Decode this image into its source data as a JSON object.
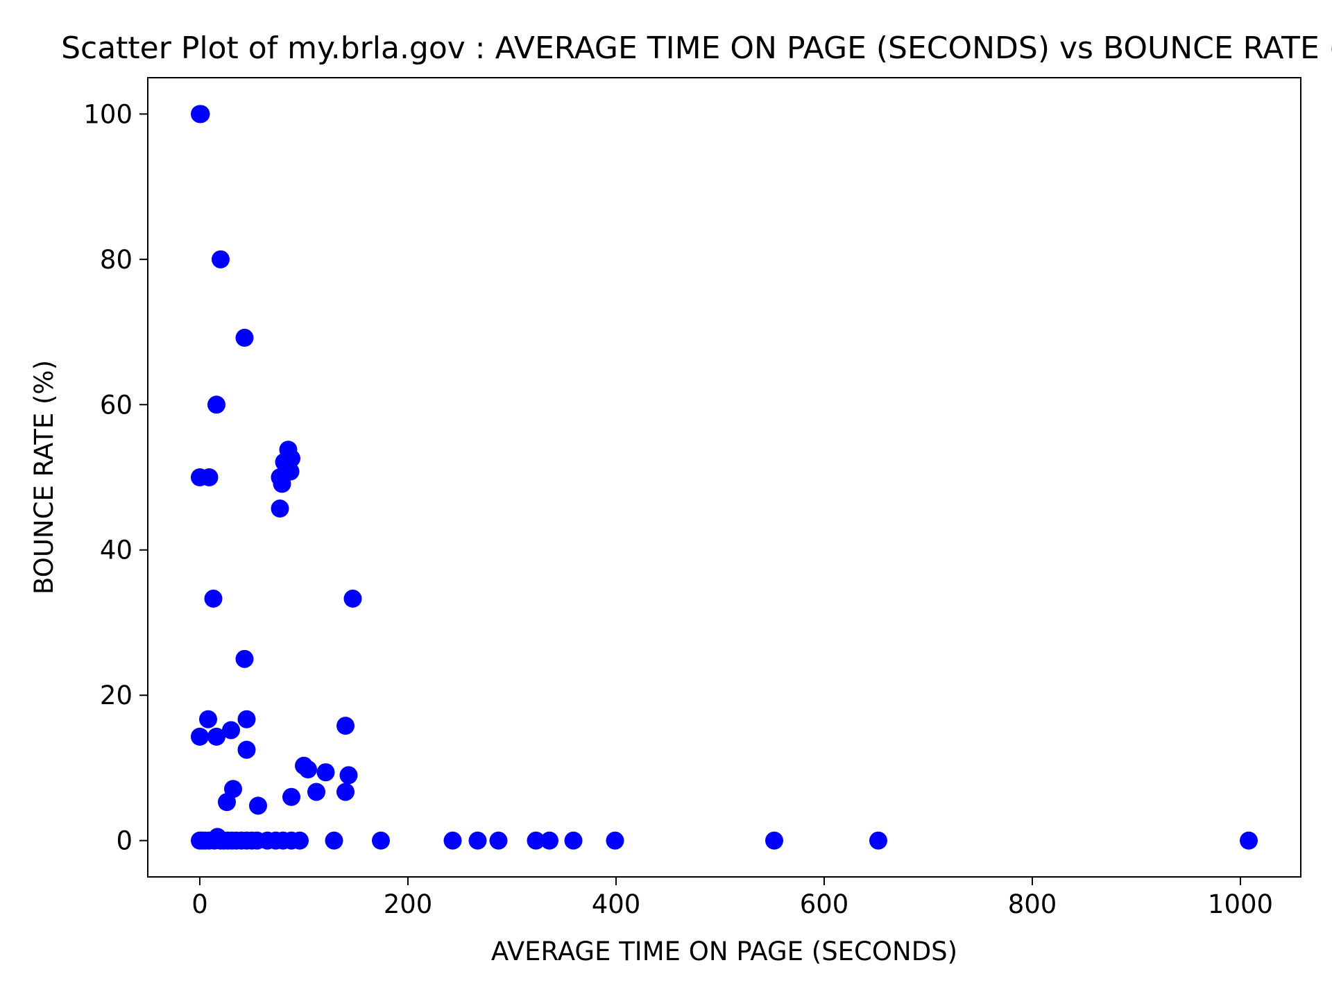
{
  "chart_data": {
    "type": "scatter",
    "title": "Scatter Plot of my.brla.gov : AVERAGE TIME ON PAGE (SECONDS) vs BOUNCE RATE (%)",
    "xlabel": "AVERAGE TIME ON PAGE (SECONDS)",
    "ylabel": "BOUNCE RATE (%)",
    "xlim": [
      -50,
      1058
    ],
    "ylim": [
      -5,
      105
    ],
    "x_ticks": [
      0,
      200,
      400,
      600,
      800,
      1000
    ],
    "y_ticks": [
      0,
      20,
      40,
      60,
      80,
      100
    ],
    "grid": false,
    "legend": "none",
    "marker_color": "#0000ff",
    "series": [
      {
        "points": [
          [
            0,
            100
          ],
          [
            1,
            100
          ],
          [
            20,
            80
          ],
          [
            43,
            69.2
          ],
          [
            16,
            60
          ],
          [
            0,
            50
          ],
          [
            9,
            50
          ],
          [
            85,
            53.8
          ],
          [
            88,
            52.6
          ],
          [
            81,
            52.1
          ],
          [
            87,
            50.8
          ],
          [
            77,
            50
          ],
          [
            79,
            49.1
          ],
          [
            77,
            45.7
          ],
          [
            13,
            33.3
          ],
          [
            147,
            33.3
          ],
          [
            43,
            25
          ],
          [
            8,
            16.7
          ],
          [
            45,
            16.7
          ],
          [
            140,
            15.8
          ],
          [
            0,
            14.3
          ],
          [
            16,
            14.3
          ],
          [
            30,
            15.2
          ],
          [
            45,
            12.5
          ],
          [
            100,
            10.3
          ],
          [
            104,
            9.8
          ],
          [
            121,
            9.4
          ],
          [
            143,
            9
          ],
          [
            32,
            7.1
          ],
          [
            112,
            6.7
          ],
          [
            140,
            6.7
          ],
          [
            88,
            6
          ],
          [
            26,
            5.3
          ],
          [
            56,
            4.8
          ],
          [
            0,
            0
          ],
          [
            2,
            0
          ],
          [
            5,
            0
          ],
          [
            9,
            0
          ],
          [
            14,
            0
          ],
          [
            17,
            0.5
          ],
          [
            20,
            0
          ],
          [
            23,
            0
          ],
          [
            27,
            0
          ],
          [
            31,
            0
          ],
          [
            35,
            0
          ],
          [
            40,
            0
          ],
          [
            45,
            0
          ],
          [
            50,
            0
          ],
          [
            55,
            0
          ],
          [
            65,
            0
          ],
          [
            73,
            0
          ],
          [
            80,
            0
          ],
          [
            88,
            0
          ],
          [
            96,
            0
          ],
          [
            129,
            0
          ],
          [
            174,
            0
          ],
          [
            243,
            0
          ],
          [
            267,
            0
          ],
          [
            287,
            0
          ],
          [
            323,
            0
          ],
          [
            336,
            0
          ],
          [
            359,
            0
          ],
          [
            399,
            0
          ],
          [
            552,
            0
          ],
          [
            652,
            0
          ],
          [
            1008,
            0
          ]
        ]
      }
    ]
  }
}
